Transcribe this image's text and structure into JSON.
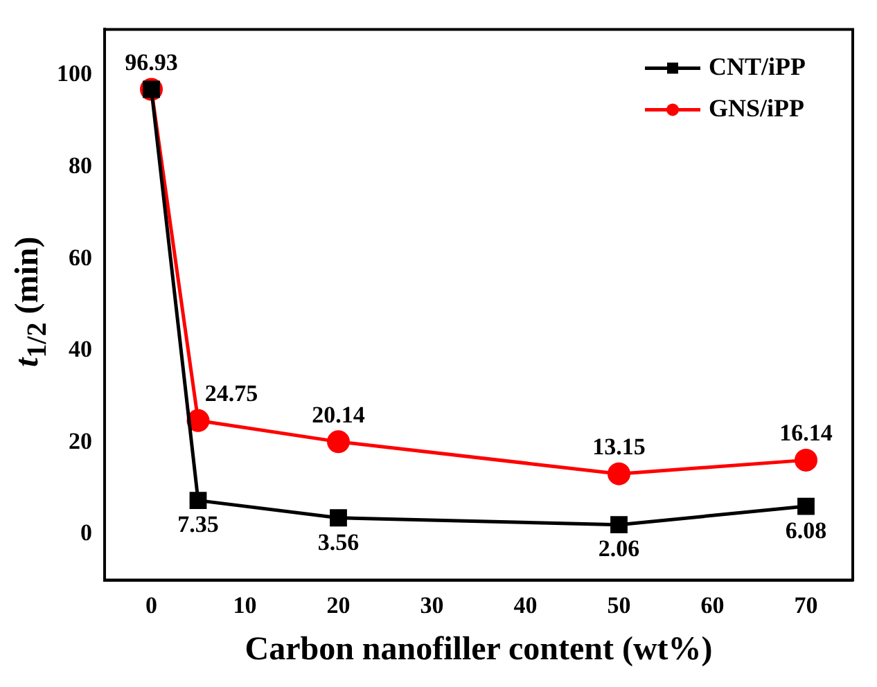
{
  "chart_data": {
    "type": "line",
    "xlabel": "Carbon nanofiller content (wt%)",
    "ylabel": "t$_{1/2}$ (min)",
    "x": [
      0,
      5,
      20,
      50,
      70
    ],
    "series": [
      {
        "name": "CNT/iPP",
        "color": "#000000",
        "marker": "square",
        "values": [
          96.93,
          7.35,
          3.56,
          2.06,
          6.08
        ],
        "value_labels": [
          null,
          "7.35",
          "3.56",
          "2.06",
          "6.08"
        ]
      },
      {
        "name": "GNS/iPP",
        "color": "#ff0000",
        "marker": "circle",
        "values": [
          96.93,
          24.75,
          20.14,
          13.15,
          16.14
        ],
        "value_labels": [
          "96.93",
          "24.75",
          "20.14",
          "13.15",
          "16.14"
        ]
      }
    ],
    "xlim": [
      -5,
      75
    ],
    "xticks": [
      0,
      10,
      20,
      30,
      40,
      50,
      60,
      70
    ],
    "ylim": [
      -10,
      110
    ],
    "yticks": [
      0,
      20,
      40,
      60,
      80,
      100
    ],
    "grid": false,
    "legend": "top right",
    "line_style": "solid"
  }
}
